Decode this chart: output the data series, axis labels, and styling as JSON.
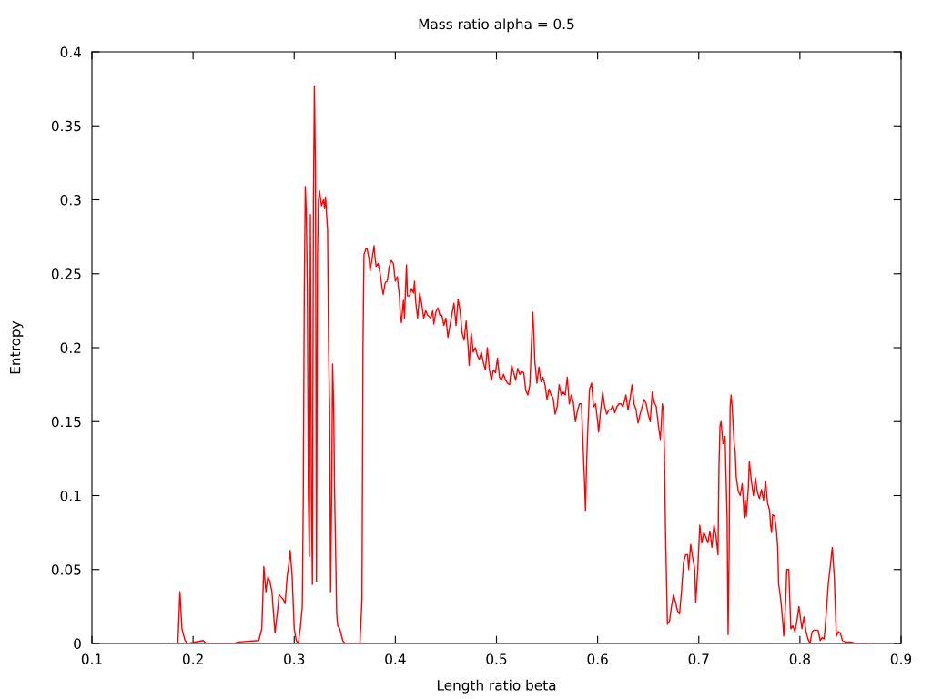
{
  "chart_data": {
    "type": "line",
    "title": "Mass ratio alpha = 0.5",
    "xlabel": "Length ratio beta",
    "ylabel": "Entropy",
    "xlim": [
      0.1,
      0.9
    ],
    "ylim": [
      0,
      0.4
    ],
    "xticks": [
      0.1,
      0.2,
      0.3,
      0.4,
      0.5,
      0.6,
      0.7,
      0.8,
      0.9
    ],
    "yticks": [
      0,
      0.05,
      0.1,
      0.15,
      0.2,
      0.25,
      0.3,
      0.35,
      0.4
    ],
    "grid": false,
    "marker": "none",
    "line_style": "solid",
    "series": [
      {
        "color": "#ff0000",
        "x": [
          0.18,
          0.185,
          0.187,
          0.189,
          0.192,
          0.195,
          0.21,
          0.213,
          0.24,
          0.245,
          0.265,
          0.268,
          0.27,
          0.272,
          0.274,
          0.276,
          0.278,
          0.281,
          0.284,
          0.285,
          0.289,
          0.291,
          0.293,
          0.295,
          0.296,
          0.298,
          0.3,
          0.302,
          0.304,
          0.306,
          0.308,
          0.309,
          0.31,
          0.311,
          0.312,
          0.313,
          0.314,
          0.315,
          0.316,
          0.317,
          0.318,
          0.319,
          0.32,
          0.321,
          0.322,
          0.323,
          0.324,
          0.325,
          0.327,
          0.329,
          0.33,
          0.331,
          0.332,
          0.333,
          0.334,
          0.335,
          0.336,
          0.337,
          0.338,
          0.339,
          0.34,
          0.341,
          0.342,
          0.343,
          0.345,
          0.348,
          0.35,
          0.365,
          0.367,
          0.368,
          0.369,
          0.371,
          0.372,
          0.374,
          0.375,
          0.377,
          0.379,
          0.38,
          0.381,
          0.383,
          0.385,
          0.387,
          0.388,
          0.39,
          0.392,
          0.394,
          0.396,
          0.398,
          0.4,
          0.402,
          0.404,
          0.405,
          0.406,
          0.408,
          0.409,
          0.411,
          0.412,
          0.414,
          0.416,
          0.418,
          0.419,
          0.42,
          0.422,
          0.423,
          0.424,
          0.426,
          0.428,
          0.43,
          0.432,
          0.435,
          0.437,
          0.438,
          0.44,
          0.442,
          0.444,
          0.446,
          0.448,
          0.45,
          0.452,
          0.454,
          0.456,
          0.458,
          0.46,
          0.462,
          0.464,
          0.466,
          0.468,
          0.47,
          0.472,
          0.473,
          0.475,
          0.477,
          0.479,
          0.481,
          0.483,
          0.485,
          0.487,
          0.489,
          0.491,
          0.493,
          0.495,
          0.497,
          0.499,
          0.501,
          0.503,
          0.505,
          0.507,
          0.509,
          0.511,
          0.513,
          0.515,
          0.517,
          0.519,
          0.521,
          0.523,
          0.525,
          0.527,
          0.529,
          0.531,
          0.533,
          0.535,
          0.536,
          0.538,
          0.54,
          0.542,
          0.544,
          0.546,
          0.548,
          0.55,
          0.552,
          0.554,
          0.556,
          0.558,
          0.56,
          0.562,
          0.564,
          0.566,
          0.568,
          0.57,
          0.572,
          0.574,
          0.576,
          0.578,
          0.58,
          0.582,
          0.584,
          0.585,
          0.587,
          0.588,
          0.589,
          0.59,
          0.592,
          0.594,
          0.596,
          0.598,
          0.6,
          0.601,
          0.603,
          0.605,
          0.607,
          0.609,
          0.611,
          0.613,
          0.615,
          0.617,
          0.619,
          0.621,
          0.623,
          0.625,
          0.627,
          0.628,
          0.63,
          0.632,
          0.634,
          0.636,
          0.638,
          0.64,
          0.642,
          0.644,
          0.646,
          0.648,
          0.65,
          0.652,
          0.654,
          0.656,
          0.658,
          0.66,
          0.662,
          0.664,
          0.665,
          0.666,
          0.667,
          0.668,
          0.669,
          0.671,
          0.673,
          0.675,
          0.677,
          0.679,
          0.681,
          0.683,
          0.685,
          0.687,
          0.689,
          0.69,
          0.692,
          0.694,
          0.696,
          0.697,
          0.699,
          0.701,
          0.703,
          0.705,
          0.707,
          0.709,
          0.711,
          0.713,
          0.715,
          0.717,
          0.719,
          0.72,
          0.721,
          0.722,
          0.724,
          0.726,
          0.728,
          0.729,
          0.73,
          0.731,
          0.732,
          0.733,
          0.735,
          0.736,
          0.737,
          0.739,
          0.741,
          0.743,
          0.745,
          0.746,
          0.747,
          0.749,
          0.75,
          0.752,
          0.754,
          0.756,
          0.758,
          0.76,
          0.762,
          0.764,
          0.766,
          0.768,
          0.77,
          0.771,
          0.772,
          0.773,
          0.775,
          0.777,
          0.778,
          0.779,
          0.781,
          0.783,
          0.784,
          0.786,
          0.787,
          0.789,
          0.791,
          0.793,
          0.795,
          0.797,
          0.799,
          0.8,
          0.802,
          0.804,
          0.806,
          0.808,
          0.81,
          0.812,
          0.814,
          0.818,
          0.82,
          0.822,
          0.824,
          0.826,
          0.828,
          0.83,
          0.832,
          0.834,
          0.836,
          0.838,
          0.84,
          0.842,
          0.845,
          0.85,
          0.855,
          0.87
        ],
        "values": [
          0,
          0,
          0.035,
          0.01,
          0.002,
          0,
          0.002,
          0,
          0,
          0.001,
          0.002,
          0.01,
          0.052,
          0.035,
          0.045,
          0.042,
          0.035,
          0.007,
          0.025,
          0.033,
          0.03,
          0.027,
          0.045,
          0.055,
          0.063,
          0.045,
          0.01,
          0.002,
          0,
          0.01,
          0.025,
          0.1,
          0.24,
          0.309,
          0.29,
          0.24,
          0.1,
          0.059,
          0.29,
          0.1,
          0.04,
          0.3,
          0.377,
          0.32,
          0.042,
          0.26,
          0.3,
          0.306,
          0.296,
          0.3,
          0.294,
          0.302,
          0.29,
          0.28,
          0.2,
          0.16,
          0.035,
          0.1,
          0.189,
          0.16,
          0.1,
          0.06,
          0.02,
          0.012,
          0.01,
          0.002,
          0,
          0,
          0.03,
          0.2,
          0.263,
          0.267,
          0.267,
          0.26,
          0.252,
          0.26,
          0.269,
          0.26,
          0.255,
          0.257,
          0.25,
          0.24,
          0.236,
          0.244,
          0.245,
          0.255,
          0.259,
          0.257,
          0.245,
          0.248,
          0.235,
          0.222,
          0.217,
          0.232,
          0.22,
          0.256,
          0.235,
          0.235,
          0.24,
          0.237,
          0.245,
          0.232,
          0.22,
          0.228,
          0.237,
          0.23,
          0.22,
          0.225,
          0.222,
          0.22,
          0.225,
          0.216,
          0.224,
          0.227,
          0.222,
          0.222,
          0.215,
          0.22,
          0.207,
          0.215,
          0.223,
          0.23,
          0.215,
          0.233,
          0.225,
          0.21,
          0.205,
          0.218,
          0.2,
          0.188,
          0.21,
          0.197,
          0.2,
          0.195,
          0.192,
          0.197,
          0.19,
          0.185,
          0.2,
          0.185,
          0.178,
          0.185,
          0.183,
          0.193,
          0.18,
          0.178,
          0.182,
          0.178,
          0.176,
          0.175,
          0.188,
          0.183,
          0.178,
          0.186,
          0.182,
          0.184,
          0.183,
          0.171,
          0.168,
          0.175,
          0.21,
          0.224,
          0.19,
          0.176,
          0.187,
          0.177,
          0.18,
          0.175,
          0.165,
          0.172,
          0.168,
          0.166,
          0.155,
          0.16,
          0.175,
          0.168,
          0.17,
          0.168,
          0.18,
          0.162,
          0.168,
          0.163,
          0.15,
          0.157,
          0.162,
          0.162,
          0.145,
          0.11,
          0.09,
          0.12,
          0.14,
          0.172,
          0.176,
          0.16,
          0.162,
          0.15,
          0.143,
          0.158,
          0.17,
          0.16,
          0.155,
          0.158,
          0.158,
          0.161,
          0.156,
          0.16,
          0.162,
          0.162,
          0.16,
          0.165,
          0.168,
          0.158,
          0.165,
          0.175,
          0.162,
          0.158,
          0.149,
          0.155,
          0.16,
          0.165,
          0.162,
          0.155,
          0.15,
          0.17,
          0.163,
          0.16,
          0.148,
          0.138,
          0.162,
          0.158,
          0.13,
          0.08,
          0.045,
          0.013,
          0.015,
          0.025,
          0.033,
          0.028,
          0.022,
          0.02,
          0.036,
          0.055,
          0.06,
          0.06,
          0.05,
          0.067,
          0.058,
          0.05,
          0.028,
          0.05,
          0.08,
          0.068,
          0.075,
          0.072,
          0.068,
          0.076,
          0.065,
          0.08,
          0.073,
          0.06,
          0.12,
          0.147,
          0.15,
          0.135,
          0.14,
          0.085,
          0.006,
          0.06,
          0.16,
          0.168,
          0.16,
          0.135,
          0.13,
          0.113,
          0.103,
          0.1,
          0.108,
          0.085,
          0.097,
          0.086,
          0.105,
          0.123,
          0.11,
          0.1,
          0.112,
          0.102,
          0.098,
          0.104,
          0.097,
          0.11,
          0.095,
          0.09,
          0.08,
          0.075,
          0.087,
          0.086,
          0.075,
          0.065,
          0.04,
          0.03,
          0.015,
          0.005,
          0.03,
          0.05,
          0.05,
          0.01,
          0.012,
          0.008,
          0.015,
          0.025,
          0.02,
          0.01,
          0.018,
          0.008,
          0.003,
          0,
          0.008,
          0.009,
          0.009,
          0.002,
          0.004,
          0.003,
          0.02,
          0.04,
          0.052,
          0.065,
          0.045,
          0.005,
          0.008,
          0.007,
          0.002,
          0.001,
          0.001,
          0,
          0
        ]
      }
    ]
  }
}
